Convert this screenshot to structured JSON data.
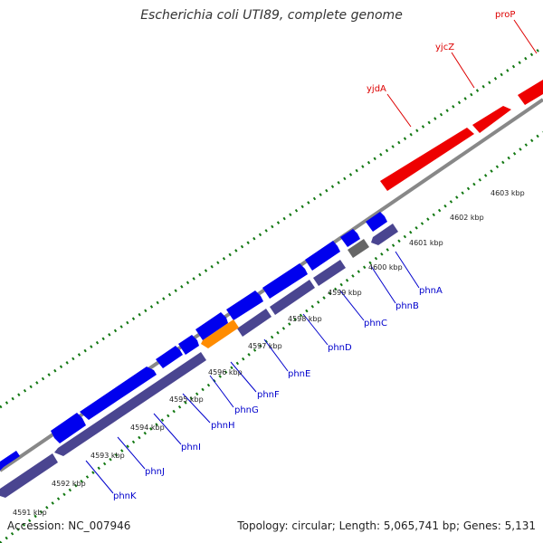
{
  "title": "Escherichia coli UTI89, complete genome",
  "footer": {
    "accession": "Accession: NC_007946",
    "summary": "Topology: circular; Length: 5,065,741 bp; Genes: 5,131"
  },
  "colors": {
    "forward_gene": "#0000ee",
    "reverse_gene": "#4a4590",
    "highlight_gene": "#ff8c00",
    "pseudo_gene": "#666666",
    "red_gene": "#ee0000",
    "backbone": "#888888",
    "tick": "#117711",
    "blue_label": "#0000cc",
    "red_label": "#dd0000"
  },
  "scale_ticks": [
    "4591 kbp",
    "4592 kbp",
    "4593 kbp",
    "4594 kbp",
    "4595 kbp",
    "4596 kbp",
    "4597 kbp",
    "4598 kbp",
    "4599 kbp",
    "4600 kbp",
    "4601 kbp",
    "4602 kbp",
    "4603 kbp"
  ],
  "gene_labels_blue": [
    "phnK",
    "phnJ",
    "phnI",
    "phnH",
    "phnG",
    "phnF",
    "phnE",
    "phnD",
    "phnC",
    "phnB",
    "phnA"
  ],
  "gene_labels_red": [
    "yjdA",
    "yjcZ",
    "proP"
  ]
}
